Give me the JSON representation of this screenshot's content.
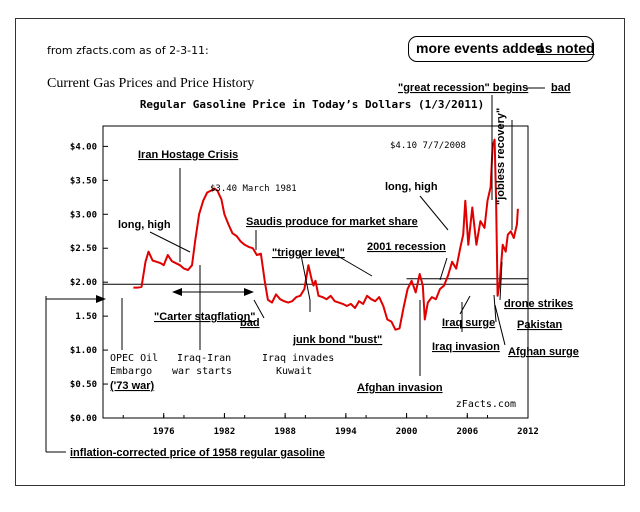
{
  "header": {
    "source_note": "from zfacts.com as of 2-3-11:",
    "page_heading": "Current Gas Prices and Price History",
    "banner_prefix": "more events added",
    "banner_link": "as noted"
  },
  "colors": {
    "series": "#e00000",
    "reference_line": "#000000",
    "axis": "#000000"
  },
  "chart_data": {
    "type": "line",
    "title": "Regular Gasoline Price in Today’s Dollars (1/3/2011)",
    "xlabel": "",
    "ylabel": "",
    "xlim": [
      1970,
      2012
    ],
    "ylim": [
      0,
      4.3
    ],
    "x_ticks": [
      {
        "value": 1976,
        "label": "1976"
      },
      {
        "value": 1982,
        "label": "1982"
      },
      {
        "value": 1988,
        "label": "1988"
      },
      {
        "value": 1994,
        "label": "1994"
      },
      {
        "value": 2000,
        "label": "2000"
      },
      {
        "value": 2006,
        "label": "2006"
      },
      {
        "value": 2012,
        "label": "2012"
      }
    ],
    "y_ticks": [
      {
        "value": 0,
        "label": "$0.00"
      },
      {
        "value": 0.5,
        "label": "$0.50"
      },
      {
        "value": 1.0,
        "label": "$1.00"
      },
      {
        "value": 1.5,
        "label": "1.50"
      },
      {
        "value": 2.0,
        "label": "$2.00"
      },
      {
        "value": 2.5,
        "label": "$2.50"
      },
      {
        "value": 3.0,
        "label": "$3.00"
      },
      {
        "value": 3.5,
        "label": "$3.50"
      },
      {
        "value": 4.0,
        "label": "$4.00"
      }
    ],
    "grid": false,
    "reference_levels": [
      {
        "value": 1.97,
        "label": "inflation-corrected price of 1958 regular gasoline"
      },
      {
        "value": 2.05,
        "label": "\"trigger level\""
      }
    ],
    "watermark": "zFacts.com",
    "series": [
      {
        "x": [
          1973.0,
          1973.4,
          1973.8,
          1974.2,
          1974.5,
          1974.9,
          1975.3,
          1975.7,
          1976.0,
          1976.4,
          1976.8,
          1977.2,
          1977.6,
          1978.0,
          1978.4,
          1978.8,
          1979.1,
          1979.5,
          1979.9,
          1980.3,
          1980.7,
          1981.0,
          1981.3,
          1981.7,
          1982.0,
          1982.4,
          1982.8,
          1983.2,
          1983.6,
          1984.0,
          1984.4,
          1984.8,
          1985.2,
          1985.6,
          1986.0,
          1986.3,
          1986.7,
          1987.1,
          1987.5,
          1987.9,
          1988.3,
          1988.7,
          1989.1,
          1989.5,
          1989.9,
          1990.3,
          1990.6,
          1990.8,
          1991.0,
          1991.3,
          1991.7,
          1992.1,
          1992.5,
          1992.9,
          1993.3,
          1993.7,
          1994.1,
          1994.5,
          1994.9,
          1995.3,
          1995.7,
          1996.1,
          1996.5,
          1996.9,
          1997.3,
          1997.7,
          1998.1,
          1998.5,
          1998.9,
          1999.3,
          1999.7,
          2000.1,
          2000.5,
          2000.9,
          2001.3,
          2001.6,
          2001.8,
          2002.1,
          2002.5,
          2002.9,
          2003.3,
          2003.7,
          2004.1,
          2004.5,
          2004.9,
          2005.3,
          2005.6,
          2005.8,
          2006.1,
          2006.5,
          2006.9,
          2007.3,
          2007.7,
          2008.0,
          2008.3,
          2008.5,
          2008.7,
          2008.85,
          2009.0,
          2009.2,
          2009.5,
          2009.8,
          2010.0,
          2010.3,
          2010.6,
          2010.9,
          2011.0
        ],
        "y": [
          1.92,
          1.92,
          1.93,
          2.3,
          2.45,
          2.32,
          2.3,
          2.28,
          2.25,
          2.4,
          2.31,
          2.28,
          2.25,
          2.2,
          2.18,
          2.25,
          2.6,
          3.0,
          3.2,
          3.32,
          3.35,
          3.38,
          3.35,
          3.22,
          3.0,
          2.85,
          2.72,
          2.68,
          2.6,
          2.55,
          2.52,
          2.5,
          2.4,
          2.42,
          2.0,
          1.74,
          1.7,
          1.82,
          1.75,
          1.72,
          1.7,
          1.72,
          1.78,
          1.8,
          1.9,
          2.25,
          2.05,
          1.95,
          2.02,
          1.8,
          1.78,
          1.75,
          1.8,
          1.72,
          1.7,
          1.68,
          1.65,
          1.68,
          1.62,
          1.72,
          1.68,
          1.8,
          1.75,
          1.72,
          1.78,
          1.65,
          1.45,
          1.42,
          1.3,
          1.32,
          1.62,
          1.9,
          2.02,
          1.85,
          2.12,
          1.95,
          1.45,
          1.7,
          1.78,
          1.75,
          1.9,
          1.95,
          2.1,
          2.3,
          2.2,
          2.5,
          2.7,
          3.2,
          2.55,
          3.1,
          2.55,
          2.9,
          2.8,
          3.2,
          3.4,
          4.0,
          4.1,
          3.2,
          1.8,
          2.0,
          2.55,
          2.45,
          2.7,
          2.75,
          2.65,
          2.85,
          3.08
        ]
      }
    ],
    "annotations": [
      {
        "id": "peak-2008",
        "text": "$4.10 7/7/2008"
      },
      {
        "id": "peak-1981",
        "text": "$3.40 March 1981"
      },
      {
        "id": "iran-hostage",
        "text": "Iran Hostage Crisis"
      },
      {
        "id": "long-high-1",
        "text": "long, high"
      },
      {
        "id": "long-high-2",
        "text": "long, high"
      },
      {
        "id": "saudis",
        "text": "Saudis produce for market share"
      },
      {
        "id": "trigger",
        "text": "\"trigger level\""
      },
      {
        "id": "recession-2001",
        "text": "2001 recession"
      },
      {
        "id": "great-recession",
        "text": "\"great recession\" begins"
      },
      {
        "id": "bad-1",
        "text": "bad"
      },
      {
        "id": "bad-2",
        "text": "bad"
      },
      {
        "id": "jobless",
        "text": "\"jobless recovery\""
      },
      {
        "id": "carter",
        "text": "\"Carter stagflation\""
      },
      {
        "id": "junk-bond",
        "text": "junk bond \"bust\""
      },
      {
        "id": "iraq-surge",
        "text": "Iraq surge"
      },
      {
        "id": "iraq-invasion",
        "text": "Iraq invasion"
      },
      {
        "id": "drone",
        "text": "drone strikes"
      },
      {
        "id": "pakistan",
        "text": "Pakistan"
      },
      {
        "id": "afghan-surge",
        "text": "Afghan surge"
      },
      {
        "id": "afghan-invasion",
        "text": "Afghan invasion"
      },
      {
        "id": "opec-1",
        "text": "OPEC Oil"
      },
      {
        "id": "opec-2",
        "text": "Embargo"
      },
      {
        "id": "opec-3",
        "text": "('73 war)"
      },
      {
        "id": "iraq-iran-1",
        "text": "Iraq-Iran"
      },
      {
        "id": "iraq-iran-2",
        "text": "war starts"
      },
      {
        "id": "iraq-kuwait-1",
        "text": "Iraq invades"
      },
      {
        "id": "iraq-kuwait-2",
        "text": "Kuwait"
      }
    ]
  }
}
